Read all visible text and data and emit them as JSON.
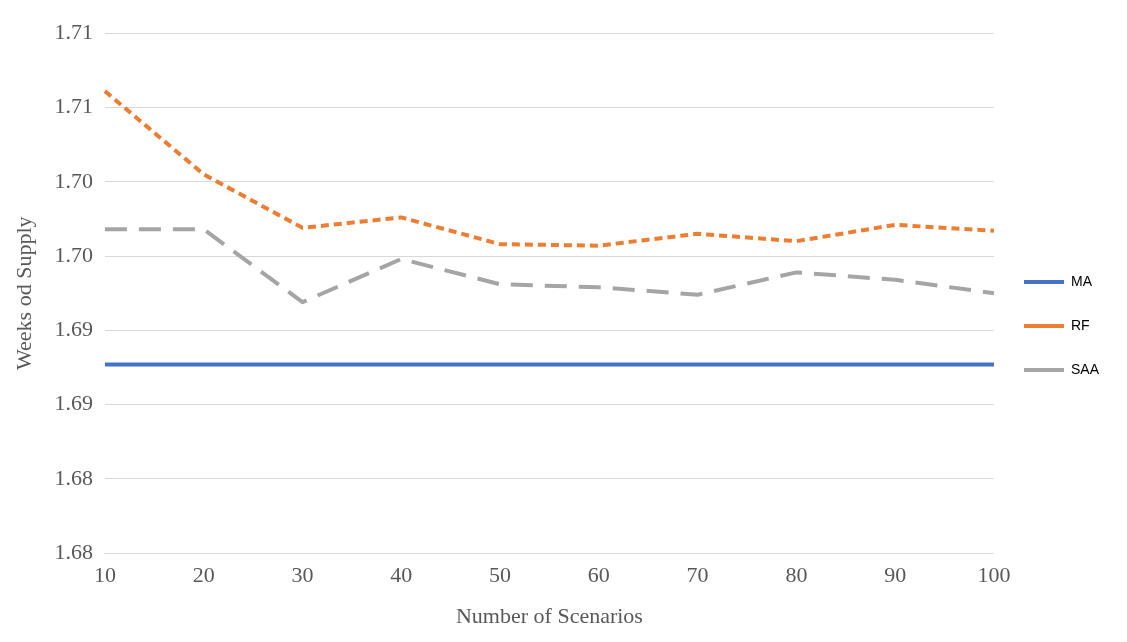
{
  "chart_data": {
    "type": "line",
    "xlabel": "Number of Scenarios",
    "ylabel": "Weeks od Supply",
    "categories": [
      "10",
      "20",
      "30",
      "40",
      "50",
      "60",
      "70",
      "80",
      "90",
      "100"
    ],
    "series": [
      {
        "name": "MA",
        "color": "#4472c4",
        "line_style": "solid",
        "values": [
          1.6877,
          1.6877,
          1.6877,
          1.6877,
          1.6877,
          1.6877,
          1.6877,
          1.6877,
          1.6877,
          1.6877
        ]
      },
      {
        "name": "RF",
        "color": "#ed7d31",
        "line_style": "dotted",
        "values": [
          1.7061,
          1.7005,
          1.6969,
          1.6976,
          1.6958,
          1.6957,
          1.6965,
          1.696,
          1.6971,
          1.6967
        ]
      },
      {
        "name": "SAA",
        "color": "#a5a5a5",
        "line_style": "dashed",
        "values": [
          1.6968,
          1.6968,
          1.6919,
          1.6948,
          1.6931,
          1.6929,
          1.6924,
          1.6939,
          1.6934,
          1.6925
        ]
      }
    ],
    "ylim": [
      1.675,
      1.71
    ],
    "yticks": [
      {
        "value": 1.675,
        "label": "1.68"
      },
      {
        "value": 1.68,
        "label": "1.68"
      },
      {
        "value": 1.685,
        "label": "1.69"
      },
      {
        "value": 1.69,
        "label": "1.69"
      },
      {
        "value": 1.695,
        "label": "1.70"
      },
      {
        "value": 1.7,
        "label": "1.70"
      },
      {
        "value": 1.705,
        "label": "1.71"
      },
      {
        "value": 1.71,
        "label": "1.71"
      }
    ],
    "grid": "y",
    "legend": "right",
    "marker": "none"
  }
}
